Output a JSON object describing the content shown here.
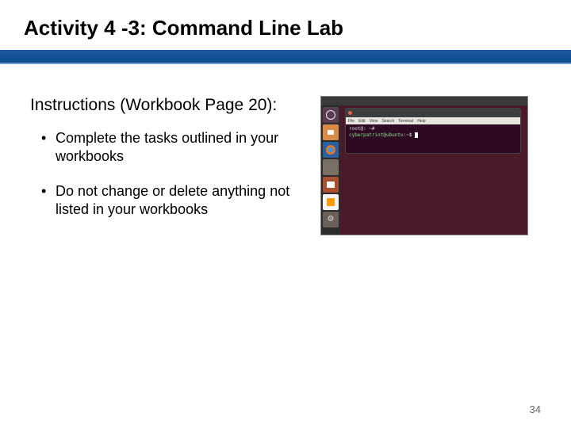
{
  "slide": {
    "title": "Activity 4 -3: Command Line Lab",
    "subheading": "Instructions (Workbook Page 20):",
    "bullets": [
      "Complete the tasks outlined in your workbooks",
      " Do not change or delete anything not listed in your workbooks"
    ],
    "page_number": "34"
  },
  "screenshot": {
    "type": "ubuntu-desktop",
    "topbar_text": "",
    "launcher_icons": [
      {
        "name": "dash",
        "color": "#5b3c52"
      },
      {
        "name": "files",
        "color": "#d98b4a"
      },
      {
        "name": "firefox",
        "color": "#2a5fa0"
      },
      {
        "name": "app1",
        "color": "#7a7065"
      },
      {
        "name": "software",
        "color": "#a85030"
      },
      {
        "name": "amazon",
        "color": "#f5f5f5"
      },
      {
        "name": "settings",
        "color": "#6b5f5a"
      }
    ],
    "terminal": {
      "menu_items": [
        "File",
        "Edit",
        "View",
        "Search",
        "Terminal",
        "Help"
      ],
      "line1": "root@: ~#",
      "line2_user": "cyberpatriot@ubuntu",
      "line2_rest": ":~$"
    },
    "colors": {
      "wallpaper_inner": "#6b3048",
      "wallpaper_outer": "#3a1522",
      "launcher_bg": "#2c2c2c",
      "topbar_bg": "#3a3a3a",
      "terminal_bg": "#2d0a22"
    }
  },
  "theme": {
    "title_bar_gradient_top": "#1a5a9e",
    "title_bar_gradient_bottom": "#0d4c8f",
    "background": "#ffffff",
    "title_fontsize": 26,
    "subheading_fontsize": 21,
    "bullet_fontsize": 18
  }
}
